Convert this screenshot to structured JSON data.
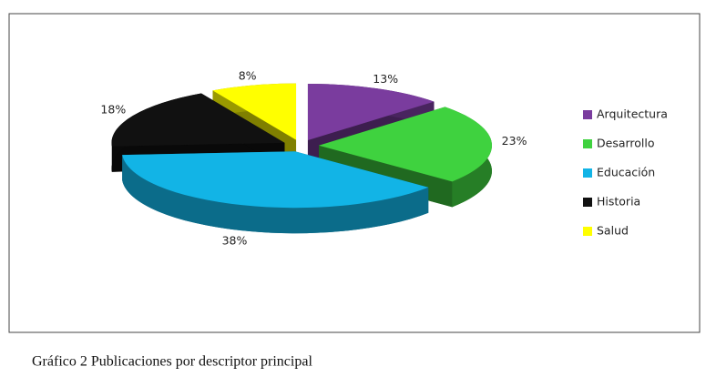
{
  "chart_data": {
    "type": "pie3d",
    "caption": "Gráfico 2 Publicaciones por descriptor principal",
    "categories": [
      "Arquitectura",
      "Desarrollo",
      "Educación",
      "Historia",
      "Salud"
    ],
    "values": [
      13,
      23,
      38,
      18,
      8
    ],
    "value_labels": [
      "13%",
      "23%",
      "38%",
      "18%",
      "8%"
    ],
    "colors": [
      "#7a3c9e",
      "#3fd23f",
      "#12b4e6",
      "#111111",
      "#ffff00"
    ],
    "legend": "right"
  }
}
